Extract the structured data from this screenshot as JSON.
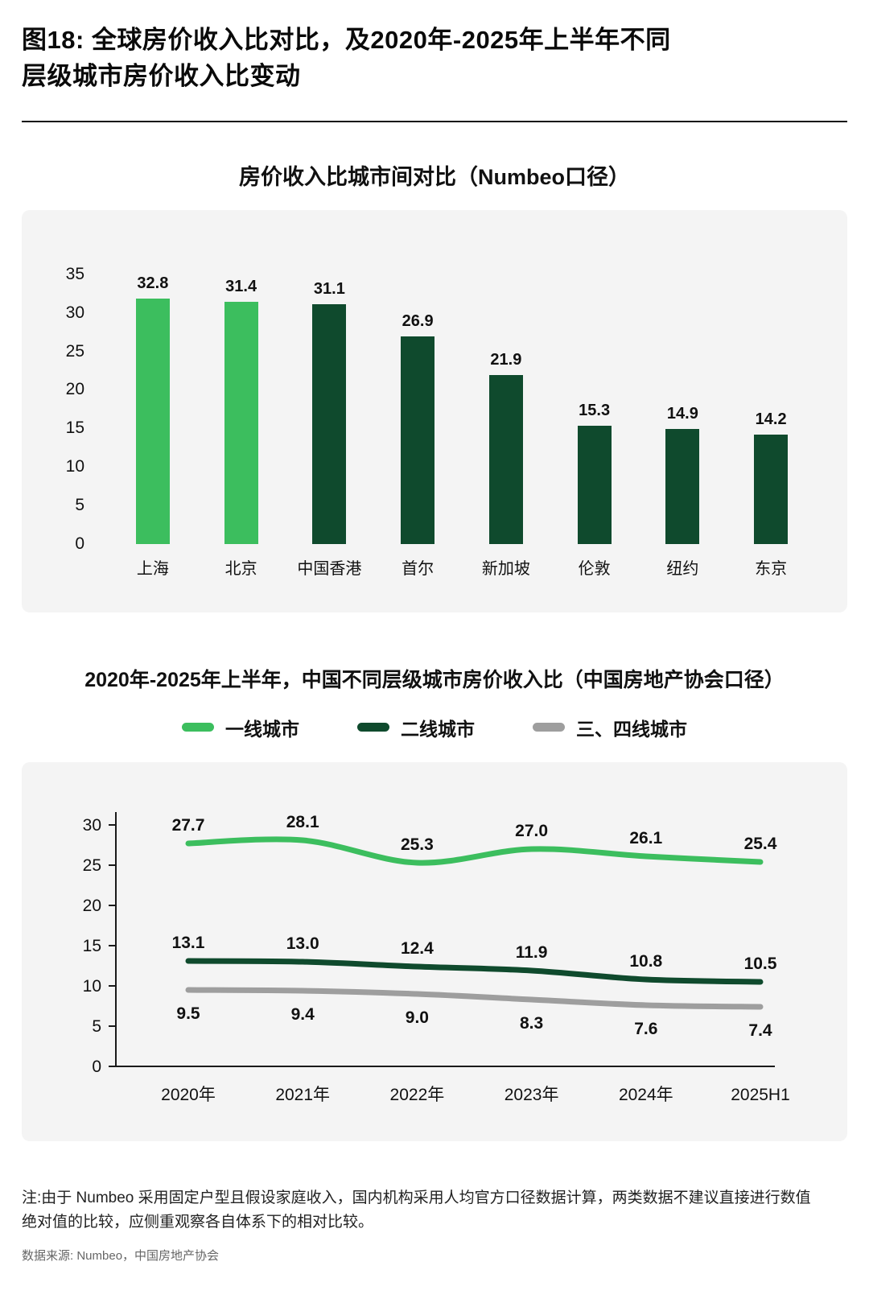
{
  "header": {
    "title_line1": "图18: 全球房价收入比对比，及2020年-2025年上半年不同",
    "title_line2": "层级城市房价收入比变动"
  },
  "colors": {
    "light_green": "#3CBE5E",
    "dark_green": "#0F4A2D",
    "gray_series": "#9E9E9E",
    "panel_bg": "#F4F4F4"
  },
  "chart_data": [
    {
      "type": "bar",
      "title": "房价收入比城市间对比（Numbeo口径）",
      "categories": [
        "上海",
        "北京",
        "中国香港",
        "首尔",
        "新加坡",
        "伦敦",
        "纽约",
        "东京"
      ],
      "values": [
        32.8,
        31.4,
        31.1,
        26.9,
        21.9,
        15.3,
        14.9,
        14.2
      ],
      "bar_colors": [
        "#3CBE5E",
        "#3CBE5E",
        "#0F4A2D",
        "#0F4A2D",
        "#0F4A2D",
        "#0F4A2D",
        "#0F4A2D",
        "#0F4A2D"
      ],
      "xlabel": "",
      "ylabel": "",
      "ylim": [
        0,
        35
      ],
      "yticks": [
        0,
        5,
        10,
        15,
        20,
        25,
        30,
        35
      ],
      "grid": false,
      "legend": "none"
    },
    {
      "type": "line",
      "title": "2020年-2025年上半年，中国不同层级城市房价收入比（中国房地产协会口径）",
      "categories": [
        "2020年",
        "2021年",
        "2022年",
        "2023年",
        "2024年",
        "2025H1"
      ],
      "series": [
        {
          "name": "一线城市",
          "color": "#3CBE5E",
          "label_position": "above",
          "values": [
            27.7,
            28.1,
            25.3,
            27.0,
            26.1,
            25.4
          ]
        },
        {
          "name": "二线城市",
          "color": "#0F4A2D",
          "label_position": "above",
          "values": [
            13.1,
            13.0,
            12.4,
            11.9,
            10.8,
            10.5
          ]
        },
        {
          "name": "三、四线城市",
          "color": "#9E9E9E",
          "label_position": "below",
          "values": [
            9.5,
            9.4,
            9.0,
            8.3,
            7.6,
            7.4
          ]
        }
      ],
      "xlabel": "",
      "ylabel": "",
      "ylim": [
        0,
        30
      ],
      "yticks": [
        0,
        5,
        10,
        15,
        20,
        25,
        30
      ],
      "grid": false,
      "legend_position": "top"
    }
  ],
  "footer": {
    "note_line1": "注:由于 Numbeo 采用固定户型且假设家庭收入，国内机构采用人均官方口径数据计算，两类数据不建议直接进行数值",
    "note_line2": "绝对值的比较，应侧重观察各自体系下的相对比较。",
    "source": "数据来源: Numbeo，中国房地产协会"
  }
}
